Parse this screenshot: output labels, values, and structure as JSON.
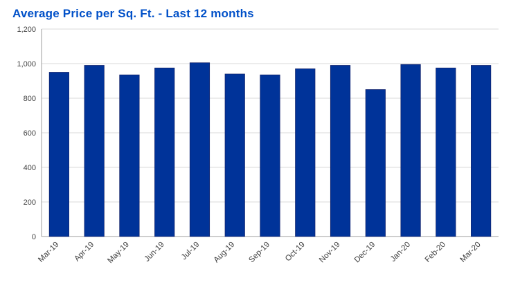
{
  "chart_data": {
    "type": "bar",
    "title": "Average Price per Sq. Ft. - Last 12 months",
    "categories": [
      "Mar-19",
      "Apr-19",
      "May-19",
      "Jun-19",
      "Jul-19",
      "Aug-19",
      "Sep-19",
      "Oct-19",
      "Nov-19",
      "Dec-19",
      "Jan-20",
      "Feb-20",
      "Mar-20"
    ],
    "values": [
      950,
      990,
      935,
      975,
      1005,
      940,
      935,
      970,
      990,
      850,
      995,
      975,
      990
    ],
    "xlabel": "",
    "ylabel": "",
    "ylim": [
      0,
      1200
    ],
    "ytick_values": [
      0,
      200,
      400,
      600,
      800,
      1000,
      1200
    ],
    "ytick_labels": [
      "0",
      "200",
      "400",
      "600",
      "800",
      "1,000",
      "1,200"
    ],
    "grid": true,
    "legend": false,
    "colors": {
      "bar_fill": "#003399",
      "bar_border": "#12226b",
      "title_text": "#0050c8",
      "axis_text": "#404040",
      "gridline": "#d9d9d9",
      "axis_line": "#9c9c9c"
    }
  }
}
